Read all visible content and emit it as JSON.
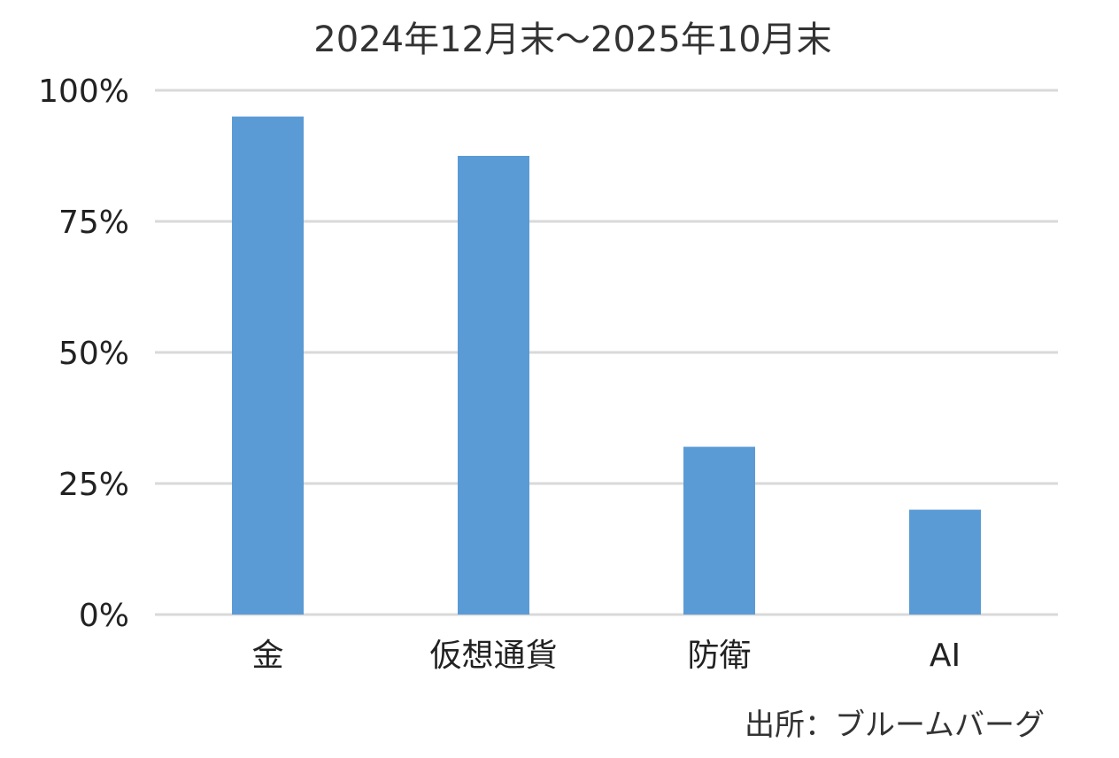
{
  "chart_data": {
    "type": "bar",
    "title": "2024年12月末～2025年10月末",
    "categories": [
      "金",
      "仮想通貨",
      "防衛",
      "AI"
    ],
    "series": [
      {
        "values": [
          95,
          87.5,
          32,
          20
        ]
      }
    ],
    "ylim": [
      0,
      100
    ],
    "yticks": [
      0,
      25,
      50,
      75,
      100
    ],
    "ytick_labels": [
      "0%",
      "25%",
      "50%",
      "75%",
      "100%"
    ],
    "grid": true,
    "bar_color": "#5b9bd5",
    "grid_color": "#d9d9d9",
    "source": "出所：ブルームバーグ"
  }
}
